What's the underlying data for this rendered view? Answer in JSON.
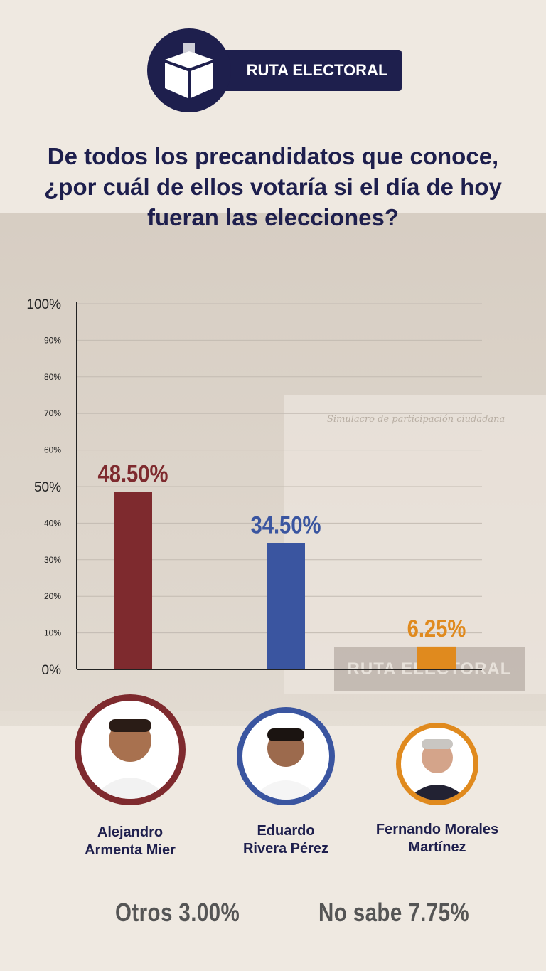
{
  "brand": {
    "name": "RUTA ELECTORAL"
  },
  "question": "De todos los precandidatos que conoce, ¿por cuál de ellos votaría si el día de hoy fueran las elecciones?",
  "background": {
    "board_caption": "Simulacro de participación ciudadana",
    "banner": "RUTA ELECTORAL"
  },
  "chart_data": {
    "type": "bar",
    "categories": [
      "Alejandro\nArmenta Mier",
      "Eduardo\nRivera Pérez",
      "Fernando Morales\nMartínez"
    ],
    "values": [
      48.5,
      34.5,
      6.25
    ],
    "value_labels": [
      "48.50%",
      "34.50%",
      "6.25%"
    ],
    "colors": [
      "#7e2a2e",
      "#3a55a0",
      "#e08a1e"
    ],
    "ylim": [
      0,
      100
    ],
    "yticks": [
      "0%",
      "10%",
      "20%",
      "30%",
      "40%",
      "50%",
      "60%",
      "70%",
      "80%",
      "90%",
      "100%"
    ],
    "grid": true
  },
  "others": [
    {
      "label": "Otros 3.00%"
    },
    {
      "label": "No sabe 7.75%"
    }
  ]
}
